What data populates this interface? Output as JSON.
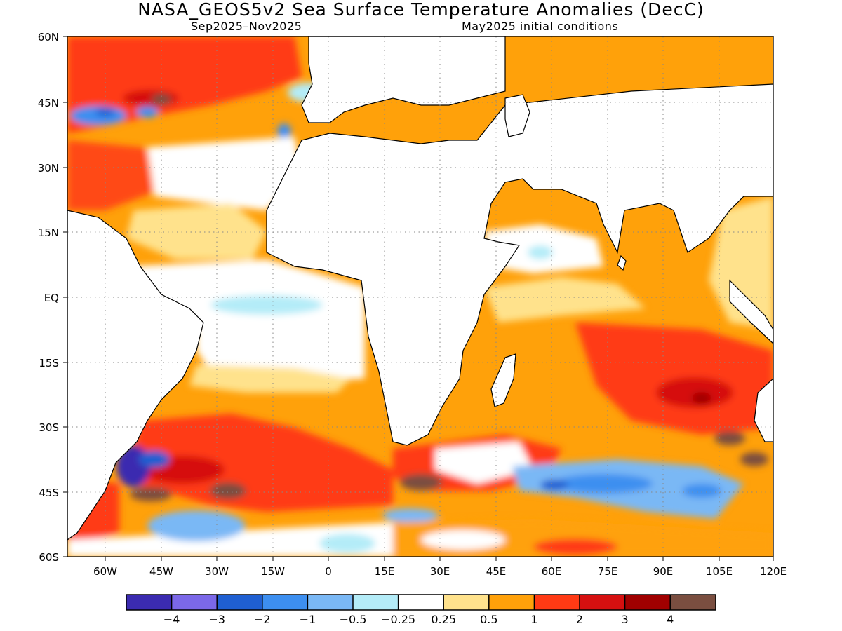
{
  "title": "NASA_GEOS5v2 Sea Surface Temperature Anomalies (DecC)",
  "subtitle_left": "Sep2025–Nov2025",
  "subtitle_right": "May2025 initial conditions",
  "y_ticks": [
    "60N",
    "45N",
    "30N",
    "15N",
    "EQ",
    "15S",
    "30S",
    "45S",
    "60S"
  ],
  "x_ticks": [
    "60W",
    "45W",
    "30W",
    "15W",
    "0",
    "15E",
    "30E",
    "45E",
    "60E",
    "75E",
    "90E",
    "105E",
    "120E"
  ],
  "colorbar": {
    "labels": [
      "−4",
      "−3",
      "−2",
      "−1",
      "−0.5",
      "−0.25",
      "0.25",
      "0.5",
      "1",
      "2",
      "3",
      "4"
    ],
    "colors": [
      "#3b2bb0",
      "#7b68e8",
      "#1f5fd1",
      "#3d8ff0",
      "#7ab8f5",
      "#b4ecf8",
      "#ffffff",
      "#ffe28c",
      "#ffa10a",
      "#ff3a14",
      "#d61010",
      "#a00000",
      "#7a4e40"
    ]
  },
  "map_colors": {
    "ocean_base": "#ffa10a",
    "land": "#ffffff",
    "coast": "#000000"
  }
}
